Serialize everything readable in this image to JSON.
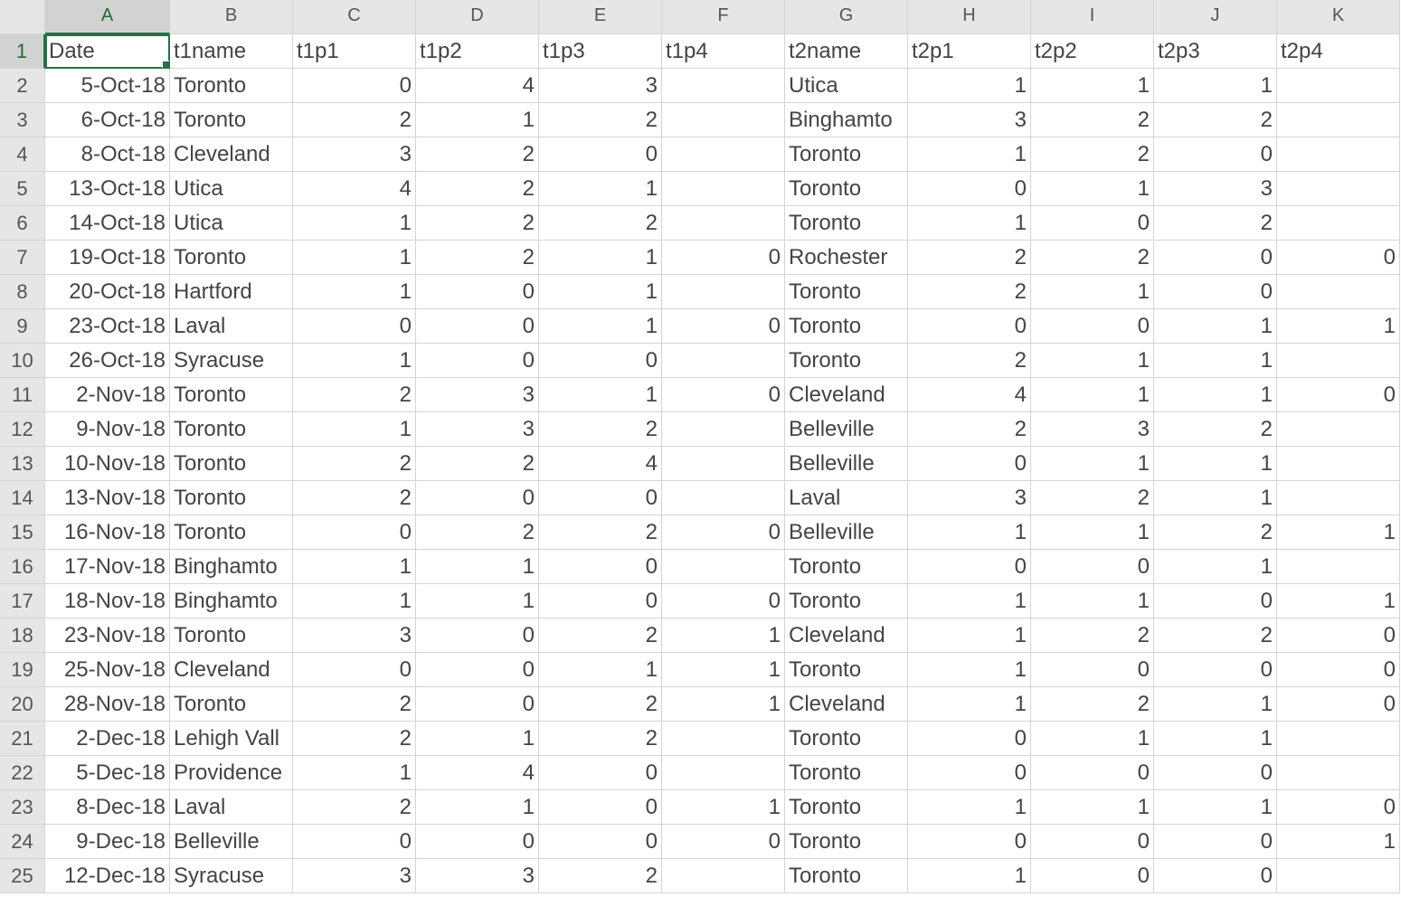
{
  "columns": [
    "A",
    "B",
    "C",
    "D",
    "E",
    "F",
    "G",
    "H",
    "I",
    "J",
    "K"
  ],
  "active_column": "A",
  "active_row": "1",
  "headers": [
    "Date",
    "t1name",
    "t1p1",
    "t1p2",
    "t1p3",
    "t1p4",
    "t2name",
    "t2p1",
    "t2p2",
    "t2p3",
    "t2p4"
  ],
  "rows": [
    {
      "n": "2",
      "cells": [
        "5-Oct-18",
        "Toronto",
        "0",
        "4",
        "3",
        "",
        "Utica",
        "1",
        "1",
        "1",
        ""
      ]
    },
    {
      "n": "3",
      "cells": [
        "6-Oct-18",
        "Toronto",
        "2",
        "1",
        "2",
        "",
        "Binghamto",
        "3",
        "2",
        "2",
        ""
      ]
    },
    {
      "n": "4",
      "cells": [
        "8-Oct-18",
        "Cleveland",
        "3",
        "2",
        "0",
        "",
        "Toronto",
        "1",
        "2",
        "0",
        ""
      ]
    },
    {
      "n": "5",
      "cells": [
        "13-Oct-18",
        "Utica",
        "4",
        "2",
        "1",
        "",
        "Toronto",
        "0",
        "1",
        "3",
        ""
      ]
    },
    {
      "n": "6",
      "cells": [
        "14-Oct-18",
        "Utica",
        "1",
        "2",
        "2",
        "",
        "Toronto",
        "1",
        "0",
        "2",
        ""
      ]
    },
    {
      "n": "7",
      "cells": [
        "19-Oct-18",
        "Toronto",
        "1",
        "2",
        "1",
        "0",
        "Rochester",
        "2",
        "2",
        "0",
        "0"
      ]
    },
    {
      "n": "8",
      "cells": [
        "20-Oct-18",
        "Hartford",
        "1",
        "0",
        "1",
        "",
        "Toronto",
        "2",
        "1",
        "0",
        ""
      ]
    },
    {
      "n": "9",
      "cells": [
        "23-Oct-18",
        "Laval",
        "0",
        "0",
        "1",
        "0",
        "Toronto",
        "0",
        "0",
        "1",
        "1"
      ]
    },
    {
      "n": "10",
      "cells": [
        "26-Oct-18",
        "Syracuse",
        "1",
        "0",
        "0",
        "",
        "Toronto",
        "2",
        "1",
        "1",
        ""
      ]
    },
    {
      "n": "11",
      "cells": [
        "2-Nov-18",
        "Toronto",
        "2",
        "3",
        "1",
        "0",
        "Cleveland",
        "4",
        "1",
        "1",
        "0"
      ]
    },
    {
      "n": "12",
      "cells": [
        "9-Nov-18",
        "Toronto",
        "1",
        "3",
        "2",
        "",
        "Belleville",
        "2",
        "3",
        "2",
        ""
      ]
    },
    {
      "n": "13",
      "cells": [
        "10-Nov-18",
        "Toronto",
        "2",
        "2",
        "4",
        "",
        "Belleville",
        "0",
        "1",
        "1",
        ""
      ]
    },
    {
      "n": "14",
      "cells": [
        "13-Nov-18",
        "Toronto",
        "2",
        "0",
        "0",
        "",
        "Laval",
        "3",
        "2",
        "1",
        ""
      ]
    },
    {
      "n": "15",
      "cells": [
        "16-Nov-18",
        "Toronto",
        "0",
        "2",
        "2",
        "0",
        "Belleville",
        "1",
        "1",
        "2",
        "1"
      ]
    },
    {
      "n": "16",
      "cells": [
        "17-Nov-18",
        "Binghamto",
        "1",
        "1",
        "0",
        "",
        "Toronto",
        "0",
        "0",
        "1",
        ""
      ]
    },
    {
      "n": "17",
      "cells": [
        "18-Nov-18",
        "Binghamto",
        "1",
        "1",
        "0",
        "0",
        "Toronto",
        "1",
        "1",
        "0",
        "1"
      ]
    },
    {
      "n": "18",
      "cells": [
        "23-Nov-18",
        "Toronto",
        "3",
        "0",
        "2",
        "1",
        "Cleveland",
        "1",
        "2",
        "2",
        "0"
      ]
    },
    {
      "n": "19",
      "cells": [
        "25-Nov-18",
        "Cleveland",
        "0",
        "0",
        "1",
        "1",
        "Toronto",
        "1",
        "0",
        "0",
        "0"
      ]
    },
    {
      "n": "20",
      "cells": [
        "28-Nov-18",
        "Toronto",
        "2",
        "0",
        "2",
        "1",
        "Cleveland",
        "1",
        "2",
        "1",
        "0"
      ]
    },
    {
      "n": "21",
      "cells": [
        "2-Dec-18",
        "Lehigh Vall",
        "2",
        "1",
        "2",
        "",
        "Toronto",
        "0",
        "1",
        "1",
        ""
      ]
    },
    {
      "n": "22",
      "cells": [
        "5-Dec-18",
        "Providence",
        "1",
        "4",
        "0",
        "",
        "Toronto",
        "0",
        "0",
        "0",
        ""
      ]
    },
    {
      "n": "23",
      "cells": [
        "8-Dec-18",
        "Laval",
        "2",
        "1",
        "0",
        "1",
        "Toronto",
        "1",
        "1",
        "1",
        "0"
      ]
    },
    {
      "n": "24",
      "cells": [
        "9-Dec-18",
        "Belleville",
        "0",
        "0",
        "0",
        "0",
        "Toronto",
        "0",
        "0",
        "0",
        "1"
      ]
    },
    {
      "n": "25",
      "cells": [
        "12-Dec-18",
        "Syracuse",
        "3",
        "3",
        "2",
        "",
        "Toronto",
        "1",
        "0",
        "0",
        ""
      ]
    }
  ]
}
